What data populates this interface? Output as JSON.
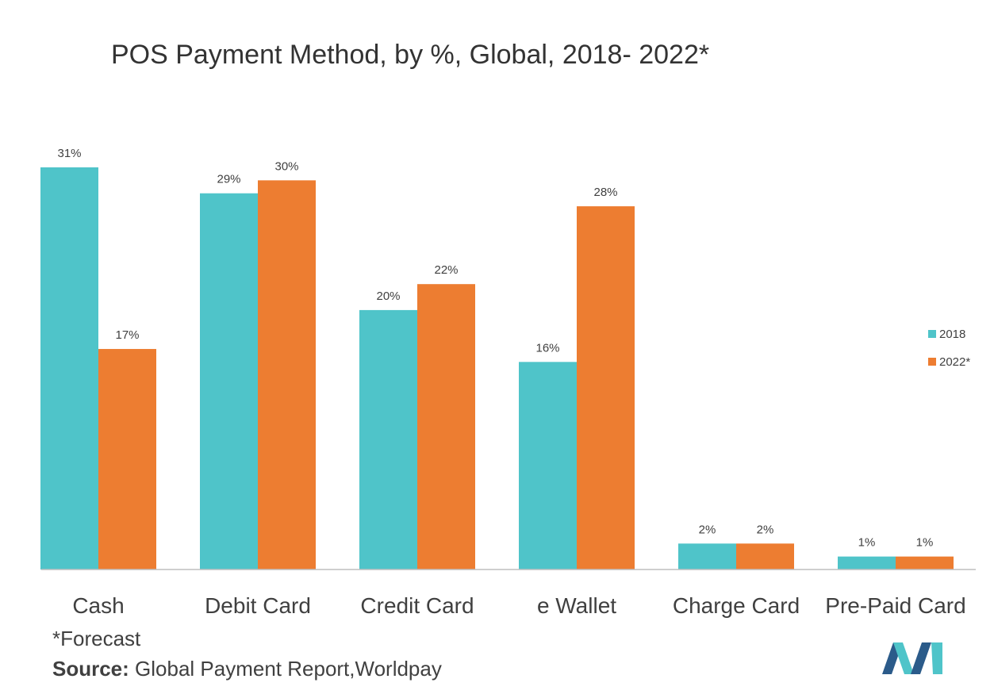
{
  "page": {
    "title": "POS Payment Method, by %, Global, 2018- 2022*",
    "footnote": "*Forecast",
    "source_label": "Source:",
    "source_text": " Global Payment Report,Worldpay"
  },
  "colors": {
    "series_2018": "#4fc4c9",
    "series_2022": "#ed7d31",
    "axis": "#bfbfbf",
    "logo_dark": "#2b5b8a",
    "logo_light": "#4fc4c9"
  },
  "icons": {
    "logo": "brand-logo-icon"
  },
  "chart_data": {
    "type": "bar",
    "title": "POS Payment Method, by %, Global, 2018- 2022*",
    "categories": [
      "Cash",
      "Debit Card",
      "Credit Card",
      "e Wallet",
      "Charge Card",
      "Pre-Paid Card"
    ],
    "series": [
      {
        "name": "2018",
        "values": [
          31,
          29,
          20,
          16,
          2,
          1
        ],
        "labels": [
          "31%",
          "29%",
          "20%",
          "16%",
          "2%",
          "1%"
        ]
      },
      {
        "name": "2022*",
        "values": [
          17,
          30,
          22,
          28,
          2,
          1
        ],
        "labels": [
          "17%",
          "30%",
          "22%",
          "28%",
          "2%",
          "1%"
        ]
      }
    ],
    "ylim": [
      0,
      31
    ],
    "grid": false,
    "legend": "right"
  }
}
